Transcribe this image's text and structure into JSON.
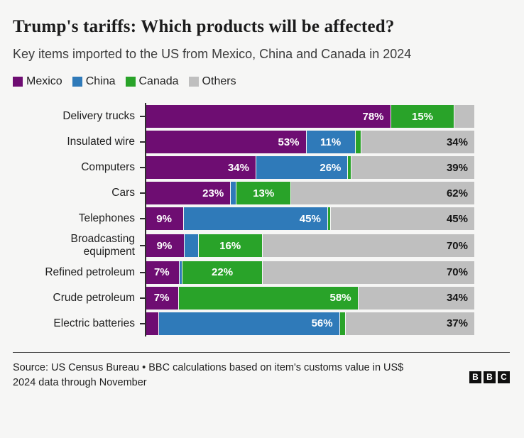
{
  "title": "Trump's tariffs: Which products will be affected?",
  "subtitle": "Key items imported to the US from Mexico, China and Canada in 2024",
  "colors": {
    "mexico": "#6e0d72",
    "china": "#2f7ab9",
    "canada": "#29a329",
    "others": "#bfbfbf",
    "background": "#f6f6f5",
    "axis": "#2e2e2e"
  },
  "legend": [
    {
      "label": "Mexico",
      "color_key": "mexico"
    },
    {
      "label": "China",
      "color_key": "china"
    },
    {
      "label": "Canada",
      "color_key": "canada"
    },
    {
      "label": "Others",
      "color_key": "others"
    }
  ],
  "chart_data": {
    "type": "bar",
    "orientation": "horizontal",
    "stacked": true,
    "value_unit": "%",
    "x_range": [
      0,
      100
    ],
    "grid": false,
    "legend_position": "top",
    "series_order": [
      "Mexico",
      "China",
      "Canada",
      "Others"
    ],
    "categories": [
      "Delivery trucks",
      "Insulated wire",
      "Computers",
      "Cars",
      "Telephones",
      "Broadcasting equipment",
      "Refined petroleum",
      "Crude petroleum",
      "Electric batteries"
    ],
    "rows": [
      {
        "category": "Delivery trucks",
        "segments": [
          {
            "series": "Mexico",
            "value": 78,
            "label": "78%"
          },
          {
            "series": "China",
            "value": 0,
            "label": ""
          },
          {
            "series": "Canada",
            "value": 15,
            "label": "15%"
          },
          {
            "series": "Others",
            "value": 7,
            "label": ""
          }
        ]
      },
      {
        "category": "Insulated wire",
        "segments": [
          {
            "series": "Mexico",
            "value": 53,
            "label": "53%"
          },
          {
            "series": "China",
            "value": 11,
            "label": "11%"
          },
          {
            "series": "Canada",
            "value": 2,
            "label": ""
          },
          {
            "series": "Others",
            "value": 34,
            "label": "34%"
          }
        ]
      },
      {
        "category": "Computers",
        "segments": [
          {
            "series": "Mexico",
            "value": 34,
            "label": "34%"
          },
          {
            "series": "China",
            "value": 26,
            "label": "26%"
          },
          {
            "series": "Canada",
            "value": 1,
            "label": ""
          },
          {
            "series": "Others",
            "value": 39,
            "label": "39%"
          }
        ]
      },
      {
        "category": "Cars",
        "segments": [
          {
            "series": "Mexico",
            "value": 23,
            "label": "23%"
          },
          {
            "series": "China",
            "value": 2,
            "label": ""
          },
          {
            "series": "Canada",
            "value": 13,
            "label": "13%"
          },
          {
            "series": "Others",
            "value": 62,
            "label": "62%"
          }
        ]
      },
      {
        "category": "Telephones",
        "segments": [
          {
            "series": "Mexico",
            "value": 9,
            "label": "9%"
          },
          {
            "series": "China",
            "value": 45,
            "label": "45%"
          },
          {
            "series": "Canada",
            "value": 1,
            "label": ""
          },
          {
            "series": "Others",
            "value": 45,
            "label": "45%"
          }
        ]
      },
      {
        "category": "Broadcasting equipment",
        "two_line": true,
        "segments": [
          {
            "series": "Mexico",
            "value": 9,
            "label": "9%"
          },
          {
            "series": "China",
            "value": 5,
            "label": ""
          },
          {
            "series": "Canada",
            "value": 16,
            "label": "16%"
          },
          {
            "series": "Others",
            "value": 70,
            "label": "70%"
          }
        ]
      },
      {
        "category": "Refined petroleum",
        "segments": [
          {
            "series": "Mexico",
            "value": 7,
            "label": "7%"
          },
          {
            "series": "China",
            "value": 1,
            "label": ""
          },
          {
            "series": "Canada",
            "value": 22,
            "label": "22%"
          },
          {
            "series": "Others",
            "value": 70,
            "label": "70%"
          }
        ]
      },
      {
        "category": "Crude petroleum",
        "segments": [
          {
            "series": "Mexico",
            "value": 7,
            "label": "7%"
          },
          {
            "series": "China",
            "value": 0,
            "label": ""
          },
          {
            "series": "Canada",
            "value": 58,
            "label": "58%"
          },
          {
            "series": "Others",
            "value": 34,
            "label": "34%"
          }
        ]
      },
      {
        "category": "Electric batteries",
        "segments": [
          {
            "series": "Mexico",
            "value": 5,
            "label": ""
          },
          {
            "series": "China",
            "value": 56,
            "label": "56%"
          },
          {
            "series": "Canada",
            "value": 2,
            "label": ""
          },
          {
            "series": "Others",
            "value": 37,
            "label": "37%"
          }
        ]
      }
    ]
  },
  "footer": {
    "source": "Source: US Census Bureau • BBC calculations based on item's customs value in US$",
    "note": "2024 data through November",
    "logo_letters": [
      "B",
      "B",
      "C"
    ]
  }
}
